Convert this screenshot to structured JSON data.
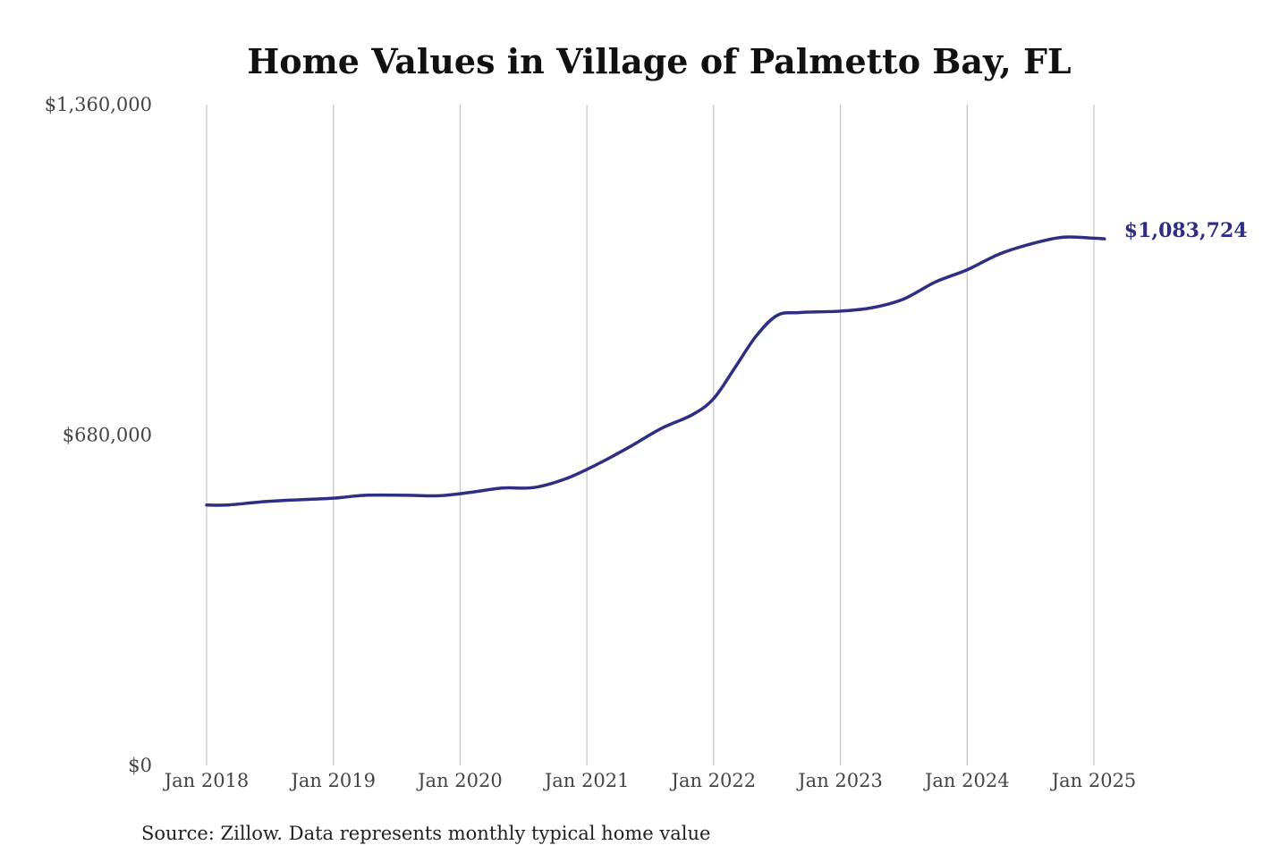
{
  "chart_data": {
    "type": "line",
    "title": "Home Values in Village of Palmetto Bay, FL",
    "xlabel": "",
    "ylabel": "",
    "x_axis": {
      "type": "date",
      "range": [
        "2018-01",
        "2025-02"
      ],
      "ticks": [
        {
          "value": "2018-01",
          "label": "Jan 2018"
        },
        {
          "value": "2019-01",
          "label": "Jan 2019"
        },
        {
          "value": "2020-01",
          "label": "Jan 2020"
        },
        {
          "value": "2021-01",
          "label": "Jan 2021"
        },
        {
          "value": "2022-01",
          "label": "Jan 2022"
        },
        {
          "value": "2023-01",
          "label": "Jan 2023"
        },
        {
          "value": "2024-01",
          "label": "Jan 2024"
        },
        {
          "value": "2025-01",
          "label": "Jan 2025"
        }
      ]
    },
    "y_axis": {
      "range": [
        0,
        1360000
      ],
      "ticks": [
        {
          "value": 0,
          "label": "$0"
        },
        {
          "value": 680000,
          "label": "$680,000"
        },
        {
          "value": 1360000,
          "label": "$1,360,000"
        }
      ]
    },
    "grid": {
      "vertical": true,
      "horizontal": false
    },
    "series": [
      {
        "color": "#2e2e82",
        "end_label": "$1,083,724",
        "points": [
          {
            "x": "2018-01",
            "y": 536000
          },
          {
            "x": "2018-03",
            "y": 536000
          },
          {
            "x": "2018-06",
            "y": 542000
          },
          {
            "x": "2018-09",
            "y": 546000
          },
          {
            "x": "2019-01",
            "y": 550000
          },
          {
            "x": "2019-04",
            "y": 556000
          },
          {
            "x": "2019-08",
            "y": 556000
          },
          {
            "x": "2019-11",
            "y": 555000
          },
          {
            "x": "2020-02",
            "y": 562000
          },
          {
            "x": "2020-05",
            "y": 571000
          },
          {
            "x": "2020-08",
            "y": 572000
          },
          {
            "x": "2020-11",
            "y": 590000
          },
          {
            "x": "2021-02",
            "y": 620000
          },
          {
            "x": "2021-05",
            "y": 655000
          },
          {
            "x": "2021-08",
            "y": 693000
          },
          {
            "x": "2021-11",
            "y": 722000
          },
          {
            "x": "2022-01",
            "y": 755000
          },
          {
            "x": "2022-03",
            "y": 818000
          },
          {
            "x": "2022-05",
            "y": 883000
          },
          {
            "x": "2022-07",
            "y": 926000
          },
          {
            "x": "2022-09",
            "y": 932000
          },
          {
            "x": "2023-01",
            "y": 935000
          },
          {
            "x": "2023-04",
            "y": 942000
          },
          {
            "x": "2023-07",
            "y": 960000
          },
          {
            "x": "2023-10",
            "y": 995000
          },
          {
            "x": "2024-01",
            "y": 1020000
          },
          {
            "x": "2024-04",
            "y": 1052000
          },
          {
            "x": "2024-07",
            "y": 1073000
          },
          {
            "x": "2024-10",
            "y": 1087000
          },
          {
            "x": "2025-01",
            "y": 1085000
          },
          {
            "x": "2025-02",
            "y": 1083724
          }
        ]
      }
    ],
    "source_note": "Source: Zillow. Data represents monthly typical home value"
  }
}
